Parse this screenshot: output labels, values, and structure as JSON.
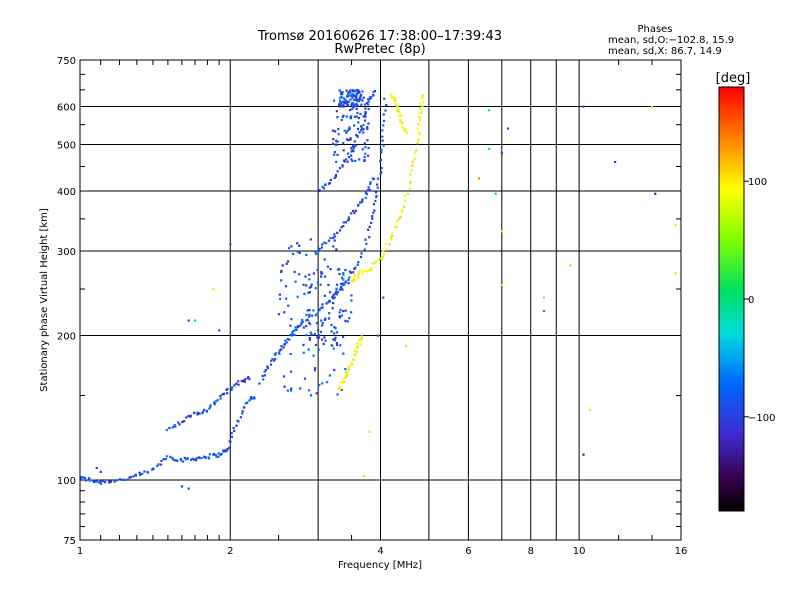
{
  "chart_data": {
    "type": "scatter",
    "title": "Tromsø 20160626 17:38:00–17:39:43",
    "subtitle": "RwPretec (8p)",
    "xlabel": "Frequency [MHz]",
    "ylabel": "Stationary phase Virtual Height [km]",
    "x_scale": "log",
    "y_scale": "log",
    "xlim": [
      1,
      16
    ],
    "ylim": [
      75,
      750
    ],
    "x_ticks": [
      1,
      2,
      4,
      6,
      8,
      10,
      16
    ],
    "x_minor_ticks": [
      3,
      5,
      7,
      9
    ],
    "y_ticks": [
      75,
      100,
      200,
      300,
      400,
      500,
      600,
      750
    ],
    "grid": true,
    "phases": {
      "heading": "Phases",
      "line1": "mean, sd,O:−102.8, 15.9",
      "line2": "mean, sd,X:  86.7, 14.9"
    },
    "colorbar": {
      "unit": "[deg]",
      "ticks": [
        100,
        0,
        -100
      ],
      "tick_labels": [
        "100",
        "0",
        "−100"
      ],
      "range": [
        -180,
        180
      ]
    },
    "series": [
      {
        "mode": "O",
        "phase_deg": -102.8,
        "traces": [
          [
            [
              1.0,
              101
            ],
            [
              1.05,
              100
            ],
            [
              1.1,
              99
            ],
            [
              1.2,
              100
            ],
            [
              1.3,
              102
            ],
            [
              1.4,
              105
            ],
            [
              1.5,
              112
            ],
            [
              1.6,
              110
            ],
            [
              1.7,
              111
            ],
            [
              1.8,
              112
            ],
            [
              1.9,
              113
            ],
            [
              1.98,
              116
            ],
            [
              2.05,
              130
            ],
            [
              2.15,
              145
            ],
            [
              2.25,
              150
            ]
          ],
          [
            [
              1.5,
              128
            ],
            [
              1.6,
              132
            ],
            [
              1.7,
              138
            ],
            [
              1.8,
              140
            ],
            [
              1.9,
              148
            ],
            [
              2.0,
              155
            ],
            [
              2.1,
              160
            ],
            [
              2.2,
              165
            ]
          ],
          [
            [
              2.3,
              160
            ],
            [
              2.4,
              175
            ],
            [
              2.5,
              185
            ],
            [
              2.6,
              195
            ],
            [
              2.7,
              205
            ],
            [
              2.8,
              215
            ],
            [
              3.0,
              225
            ],
            [
              3.2,
              240
            ],
            [
              3.4,
              258
            ],
            [
              3.6,
              280
            ],
            [
              3.8,
              330
            ],
            [
              3.9,
              380
            ],
            [
              4.0,
              440
            ],
            [
              4.05,
              520
            ],
            [
              4.1,
              640
            ]
          ],
          [
            [
              3.0,
              400
            ],
            [
              3.2,
              420
            ],
            [
              3.4,
              460
            ],
            [
              3.55,
              500
            ],
            [
              3.7,
              560
            ],
            [
              3.8,
              620
            ],
            [
              3.9,
              650
            ]
          ],
          [
            [
              3.0,
              300
            ],
            [
              3.2,
              320
            ],
            [
              3.4,
              345
            ],
            [
              3.6,
              370
            ],
            [
              3.75,
              395
            ],
            [
              3.9,
              430
            ]
          ]
        ],
        "clusters": [
          {
            "x": [
              2.5,
              3.4
            ],
            "y": [
              150,
              320
            ]
          },
          {
            "x": [
              2.8,
              3.5
            ],
            "y": [
              190,
              280
            ]
          },
          {
            "x": [
              3.2,
              3.8
            ],
            "y": [
              460,
              620
            ]
          },
          {
            "x": [
              3.3,
              3.7
            ],
            "y": [
              600,
              650
            ]
          }
        ]
      },
      {
        "mode": "X",
        "phase_deg": 86.7,
        "traces": [
          [
            [
              3.5,
              260
            ],
            [
              3.6,
              268
            ],
            [
              3.8,
              275
            ],
            [
              4.0,
              290
            ],
            [
              4.2,
              320
            ],
            [
              4.4,
              360
            ],
            [
              4.6,
              420
            ],
            [
              4.75,
              500
            ],
            [
              4.8,
              580
            ],
            [
              4.85,
              640
            ]
          ],
          [
            [
              3.3,
              155
            ],
            [
              3.4,
              165
            ],
            [
              3.5,
              175
            ],
            [
              3.6,
              190
            ],
            [
              3.7,
              200
            ]
          ],
          [
            [
              4.2,
              640
            ],
            [
              4.3,
              600
            ],
            [
              4.4,
              560
            ],
            [
              4.5,
              520
            ]
          ]
        ],
        "clusters": []
      }
    ],
    "scattered_points": [
      {
        "x": 1.65,
        "y": 215,
        "phase": -90
      },
      {
        "x": 1.7,
        "y": 215,
        "phase": -10
      },
      {
        "x": 1.85,
        "y": 250,
        "phase": 100
      },
      {
        "x": 2.0,
        "y": 310,
        "phase": -100
      },
      {
        "x": 1.9,
        "y": 205,
        "phase": -100
      },
      {
        "x": 1.6,
        "y": 97,
        "phase": -100
      },
      {
        "x": 1.65,
        "y": 96,
        "phase": -100
      },
      {
        "x": 1.08,
        "y": 106,
        "phase": -100
      },
      {
        "x": 1.1,
        "y": 104,
        "phase": -120
      },
      {
        "x": 6.6,
        "y": 590,
        "phase": -30
      },
      {
        "x": 7.2,
        "y": 540,
        "phase": -100
      },
      {
        "x": 6.6,
        "y": 490,
        "phase": -10
      },
      {
        "x": 7.0,
        "y": 480,
        "phase": -110
      },
      {
        "x": 6.3,
        "y": 425,
        "phase": 130
      },
      {
        "x": 6.8,
        "y": 395,
        "phase": -10
      },
      {
        "x": 7.0,
        "y": 330,
        "phase": 95
      },
      {
        "x": 7.0,
        "y": 255,
        "phase": 40
      },
      {
        "x": 8.5,
        "y": 240,
        "phase": 110
      },
      {
        "x": 8.5,
        "y": 225,
        "phase": 160
      },
      {
        "x": 9.6,
        "y": 280,
        "phase": 40
      },
      {
        "x": 10.2,
        "y": 600,
        "phase": -100
      },
      {
        "x": 11.8,
        "y": 460,
        "phase": -110
      },
      {
        "x": 14.2,
        "y": 395,
        "phase": -130
      },
      {
        "x": 14.0,
        "y": 600,
        "phase": 100
      },
      {
        "x": 15.6,
        "y": 340,
        "phase": 100
      },
      {
        "x": 15.6,
        "y": 270,
        "phase": 100
      },
      {
        "x": 10.5,
        "y": 140,
        "phase": 95
      },
      {
        "x": 10.2,
        "y": 113,
        "phase": -130
      },
      {
        "x": 4.5,
        "y": 190,
        "phase": 100
      },
      {
        "x": 3.8,
        "y": 126,
        "phase": 100
      },
      {
        "x": 3.7,
        "y": 102,
        "phase": 100
      },
      {
        "x": 3.95,
        "y": 200,
        "phase": -100
      },
      {
        "x": 4.05,
        "y": 240,
        "phase": -100
      }
    ]
  }
}
